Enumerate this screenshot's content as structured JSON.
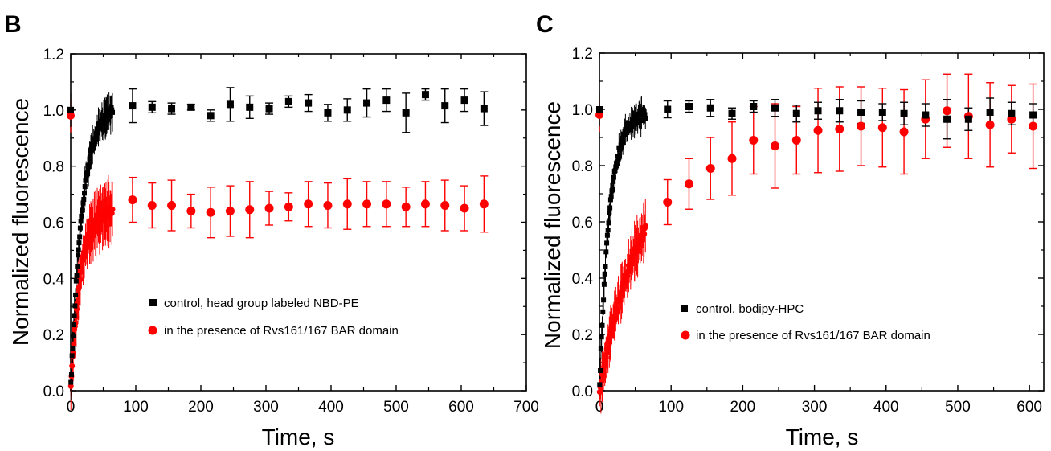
{
  "chart_data": [
    {
      "type": "scatter",
      "panel": "B",
      "xlabel": "Time, s",
      "ylabel": "Normalized fluorescence",
      "xlim": [
        0,
        700
      ],
      "ylim": [
        0,
        1.2
      ],
      "xticks": [
        0,
        100,
        200,
        300,
        400,
        500,
        600,
        700
      ],
      "yticks": [
        0.0,
        0.2,
        0.4,
        0.6,
        0.8,
        1.0,
        1.2
      ],
      "grid": false,
      "legend_position": "center-left",
      "series": [
        {
          "name": "control, head group labeled NBD-PE",
          "marker": "square",
          "color": "#000000",
          "x": [
            95,
            125,
            155,
            185,
            215,
            245,
            275,
            305,
            335,
            365,
            395,
            425,
            455,
            485,
            515,
            545,
            575,
            605,
            635
          ],
          "y": [
            1.015,
            1.01,
            1.005,
            1.01,
            0.98,
            1.02,
            1.01,
            1.005,
            1.03,
            1.025,
            0.99,
            1.0,
            1.025,
            1.035,
            0.99,
            1.055,
            1.015,
            1.035,
            1.005
          ],
          "err": [
            0.06,
            0.02,
            0.02,
            0.01,
            0.02,
            0.06,
            0.04,
            0.02,
            0.02,
            0.03,
            0.03,
            0.04,
            0.05,
            0.04,
            0.07,
            0.02,
            0.06,
            0.04,
            0.06
          ],
          "initial_rise": {
            "t_end": 65,
            "y_end": 1.0,
            "tau": 18,
            "err": 0.06
          }
        },
        {
          "name": "in the presence of Rvs161/167 BAR domain",
          "marker": "circle",
          "color": "#ff0000",
          "x": [
            95,
            125,
            155,
            185,
            215,
            245,
            275,
            305,
            335,
            365,
            395,
            425,
            455,
            485,
            515,
            545,
            575,
            605,
            635
          ],
          "y": [
            0.68,
            0.66,
            0.66,
            0.64,
            0.635,
            0.64,
            0.645,
            0.65,
            0.655,
            0.665,
            0.66,
            0.665,
            0.665,
            0.665,
            0.655,
            0.665,
            0.66,
            0.65,
            0.665
          ],
          "err": [
            0.08,
            0.08,
            0.09,
            0.06,
            0.09,
            0.09,
            0.1,
            0.06,
            0.05,
            0.08,
            0.08,
            0.09,
            0.08,
            0.08,
            0.07,
            0.08,
            0.09,
            0.08,
            0.1
          ],
          "initial_rise": {
            "t_end": 65,
            "y_end": 0.64,
            "tau": 15,
            "err": 0.1
          }
        }
      ]
    },
    {
      "type": "scatter",
      "panel": "C",
      "xlabel": "Time, s",
      "ylabel": "Normalized fluorescence",
      "xlim": [
        0,
        620
      ],
      "ylim": [
        0,
        1.2
      ],
      "xticks": [
        0,
        100,
        200,
        300,
        400,
        500,
        600
      ],
      "yticks": [
        0.0,
        0.2,
        0.4,
        0.6,
        0.8,
        1.0,
        1.2
      ],
      "grid": false,
      "legend_position": "center",
      "series": [
        {
          "name": "control,  bodipy-HPC",
          "marker": "square",
          "color": "#000000",
          "x": [
            95,
            125,
            155,
            185,
            215,
            245,
            275,
            305,
            335,
            365,
            395,
            425,
            455,
            485,
            515,
            545,
            575,
            605
          ],
          "y": [
            1.0,
            1.01,
            1.005,
            0.985,
            1.01,
            1.005,
            0.985,
            0.995,
            0.995,
            0.99,
            0.99,
            0.985,
            0.98,
            0.965,
            0.965,
            0.99,
            0.985,
            0.98
          ],
          "err": [
            0.03,
            0.02,
            0.03,
            0.02,
            0.02,
            0.03,
            0.03,
            0.03,
            0.04,
            0.04,
            0.03,
            0.04,
            0.04,
            0.07,
            0.04,
            0.05,
            0.04,
            0.04
          ],
          "initial_rise": {
            "t_end": 65,
            "y_end": 0.98,
            "tau": 14,
            "err": 0.05
          }
        },
        {
          "name": "in the presence of Rvs161/167 BAR domain",
          "marker": "circle",
          "color": "#ff0000",
          "x": [
            95,
            125,
            155,
            185,
            215,
            245,
            275,
            305,
            335,
            365,
            395,
            425,
            455,
            485,
            515,
            545,
            575,
            605
          ],
          "y": [
            0.67,
            0.735,
            0.79,
            0.825,
            0.89,
            0.87,
            0.89,
            0.925,
            0.93,
            0.94,
            0.935,
            0.92,
            0.965,
            0.995,
            0.975,
            0.945,
            0.965,
            0.94
          ],
          "err": [
            0.08,
            0.09,
            0.11,
            0.13,
            0.12,
            0.15,
            0.12,
            0.15,
            0.15,
            0.14,
            0.14,
            0.15,
            0.14,
            0.13,
            0.15,
            0.15,
            0.12,
            0.15
          ],
          "initial_rise": {
            "t_end": 65,
            "y_end": 0.58,
            "tau": 60,
            "err": 0.09
          }
        }
      ]
    }
  ]
}
